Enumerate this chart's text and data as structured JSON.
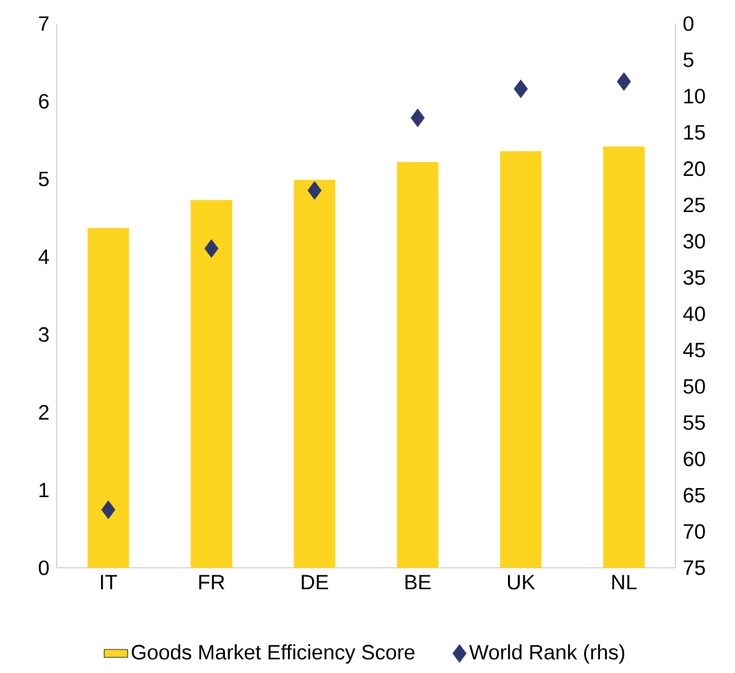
{
  "chart_data": {
    "type": "bar",
    "categories": [
      "IT",
      "FR",
      "DE",
      "BE",
      "UK",
      "NL"
    ],
    "series": [
      {
        "name": "Goods Market Efficiency Score",
        "color": "#fdd51f",
        "values": [
          4.37,
          4.73,
          4.99,
          5.22,
          5.36,
          5.42
        ]
      },
      {
        "name": "World Rank (rhs)",
        "type": "scatter",
        "axis": "y2",
        "marker": "diamond",
        "color": "#2e3770",
        "values": [
          67,
          31,
          23,
          13,
          9,
          8
        ]
      }
    ],
    "ylim": [
      0,
      7
    ],
    "yticks": [
      0,
      1,
      2,
      3,
      4,
      5,
      6,
      7
    ],
    "y2lim": [
      75,
      0
    ],
    "y2ticks": [
      0,
      5,
      10,
      15,
      20,
      25,
      30,
      35,
      40,
      45,
      50,
      55,
      60,
      65,
      70,
      75
    ],
    "legend": "bottom"
  }
}
